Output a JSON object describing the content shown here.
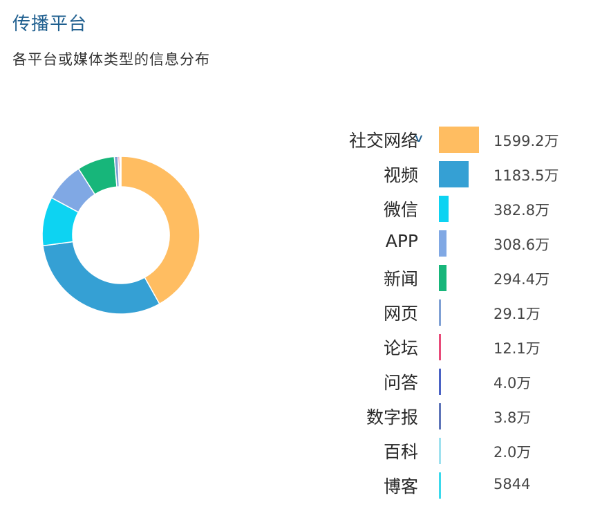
{
  "header": {
    "title": "传播平台",
    "subtitle": "各平台或媒体类型的信息分布"
  },
  "chart_data": {
    "type": "pie",
    "variant": "donut",
    "legend_position": "right",
    "series": [
      {
        "name": "社交网络",
        "value": 15992000,
        "label": "1599.2万",
        "color": "#ffbd61"
      },
      {
        "name": "视频",
        "value": 11835000,
        "label": "1183.5万",
        "color": "#35a0d4"
      },
      {
        "name": "微信",
        "value": 3828000,
        "label": "382.8万",
        "color": "#0dd3f2"
      },
      {
        "name": "APP",
        "value": 3086000,
        "label": "308.6万",
        "color": "#80a8e4"
      },
      {
        "name": "新闻",
        "value": 2944000,
        "label": "294.4万",
        "color": "#17b67a"
      },
      {
        "name": "网页",
        "value": 291000,
        "label": "29.1万",
        "color": "#7fa0d4"
      },
      {
        "name": "论坛",
        "value": 121000,
        "label": "12.1万",
        "color": "#e84a79"
      },
      {
        "name": "问答",
        "value": 40000,
        "label": "4.0万",
        "color": "#4a62c4"
      },
      {
        "name": "数字报",
        "value": 38000,
        "label": "3.8万",
        "color": "#5d74b8"
      },
      {
        "name": "百科",
        "value": 20000,
        "label": "2.0万",
        "color": "#9ee1ef"
      },
      {
        "name": "博客",
        "value": 5844,
        "label": "5844",
        "color": "#3ad9ec"
      }
    ]
  }
}
